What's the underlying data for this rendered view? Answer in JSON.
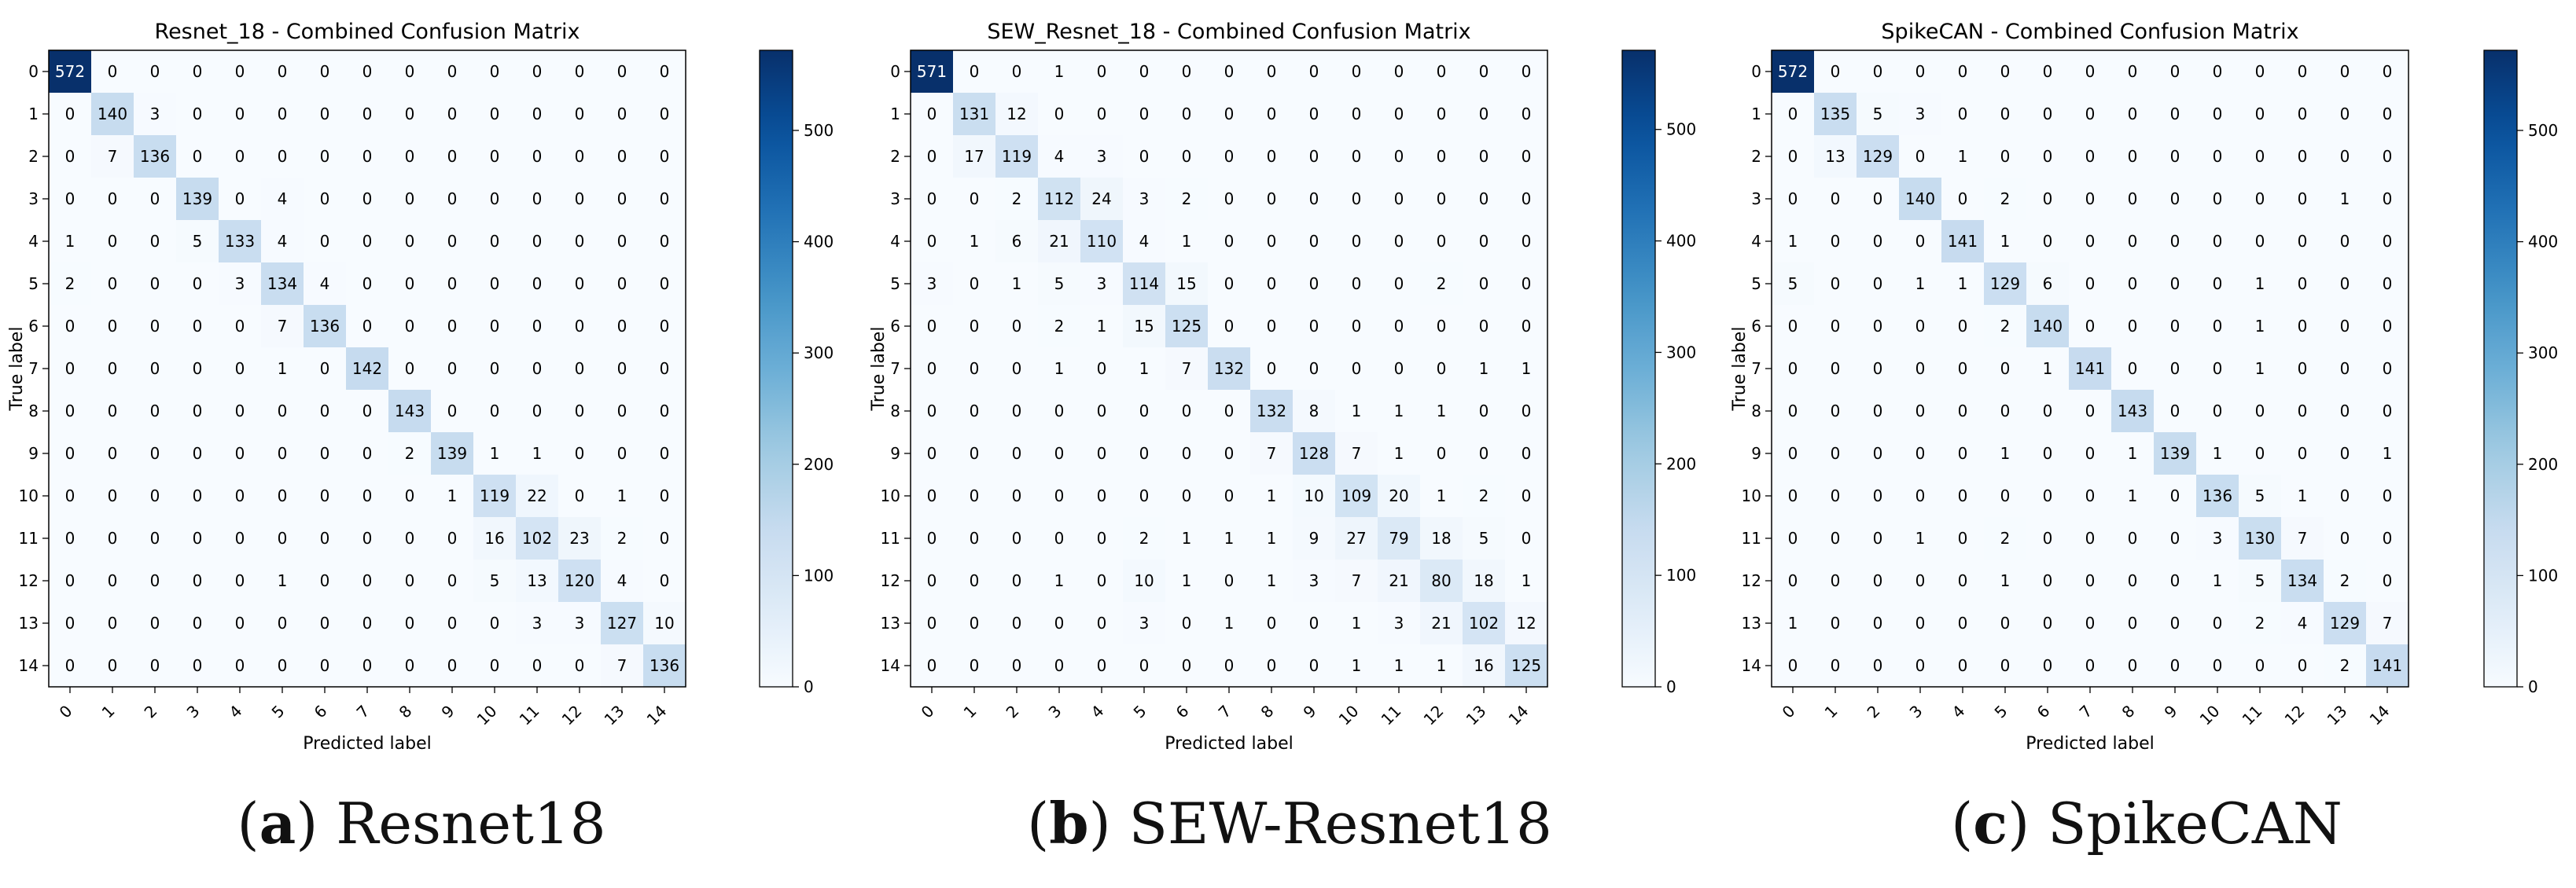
{
  "colors": {
    "low": "#f7fbff",
    "high": "#08306b",
    "light_text": "#ffffff",
    "dark_text": "#000000"
  },
  "chart_data": [
    {
      "type": "heatmap",
      "title": "Resnet_18 - Combined Confusion Matrix",
      "xlabel": "Predicted label",
      "ylabel": "True label",
      "labels": [
        "0",
        "1",
        "2",
        "3",
        "4",
        "5",
        "6",
        "7",
        "8",
        "9",
        "10",
        "11",
        "12",
        "13",
        "14"
      ],
      "colorbar": {
        "range": [
          0,
          572
        ],
        "ticks": [
          0,
          100,
          200,
          300,
          400,
          500
        ]
      },
      "matrix": [
        [
          572,
          0,
          0,
          0,
          0,
          0,
          0,
          0,
          0,
          0,
          0,
          0,
          0,
          0,
          0
        ],
        [
          0,
          140,
          3,
          0,
          0,
          0,
          0,
          0,
          0,
          0,
          0,
          0,
          0,
          0,
          0
        ],
        [
          0,
          7,
          136,
          0,
          0,
          0,
          0,
          0,
          0,
          0,
          0,
          0,
          0,
          0,
          0
        ],
        [
          0,
          0,
          0,
          139,
          0,
          4,
          0,
          0,
          0,
          0,
          0,
          0,
          0,
          0,
          0
        ],
        [
          1,
          0,
          0,
          5,
          133,
          4,
          0,
          0,
          0,
          0,
          0,
          0,
          0,
          0,
          0
        ],
        [
          2,
          0,
          0,
          0,
          3,
          134,
          4,
          0,
          0,
          0,
          0,
          0,
          0,
          0,
          0
        ],
        [
          0,
          0,
          0,
          0,
          0,
          7,
          136,
          0,
          0,
          0,
          0,
          0,
          0,
          0,
          0
        ],
        [
          0,
          0,
          0,
          0,
          0,
          1,
          0,
          142,
          0,
          0,
          0,
          0,
          0,
          0,
          0
        ],
        [
          0,
          0,
          0,
          0,
          0,
          0,
          0,
          0,
          143,
          0,
          0,
          0,
          0,
          0,
          0
        ],
        [
          0,
          0,
          0,
          0,
          0,
          0,
          0,
          0,
          2,
          139,
          1,
          1,
          0,
          0,
          0
        ],
        [
          0,
          0,
          0,
          0,
          0,
          0,
          0,
          0,
          0,
          1,
          119,
          22,
          0,
          1,
          0
        ],
        [
          0,
          0,
          0,
          0,
          0,
          0,
          0,
          0,
          0,
          0,
          16,
          102,
          23,
          2,
          0
        ],
        [
          0,
          0,
          0,
          0,
          0,
          1,
          0,
          0,
          0,
          0,
          5,
          13,
          120,
          4,
          0
        ],
        [
          0,
          0,
          0,
          0,
          0,
          0,
          0,
          0,
          0,
          0,
          0,
          3,
          3,
          127,
          10
        ],
        [
          0,
          0,
          0,
          0,
          0,
          0,
          0,
          0,
          0,
          0,
          0,
          0,
          0,
          7,
          136
        ]
      ],
      "caption_letter": "a",
      "caption_text": "Resnet18"
    },
    {
      "type": "heatmap",
      "title": "SEW_Resnet_18 - Combined Confusion Matrix",
      "xlabel": "Predicted label",
      "ylabel": "True label",
      "labels": [
        "0",
        "1",
        "2",
        "3",
        "4",
        "5",
        "6",
        "7",
        "8",
        "9",
        "10",
        "11",
        "12",
        "13",
        "14"
      ],
      "colorbar": {
        "range": [
          0,
          571
        ],
        "ticks": [
          0,
          100,
          200,
          300,
          400,
          500
        ]
      },
      "matrix": [
        [
          571,
          0,
          0,
          1,
          0,
          0,
          0,
          0,
          0,
          0,
          0,
          0,
          0,
          0,
          0
        ],
        [
          0,
          131,
          12,
          0,
          0,
          0,
          0,
          0,
          0,
          0,
          0,
          0,
          0,
          0,
          0
        ],
        [
          0,
          17,
          119,
          4,
          3,
          0,
          0,
          0,
          0,
          0,
          0,
          0,
          0,
          0,
          0
        ],
        [
          0,
          0,
          2,
          112,
          24,
          3,
          2,
          0,
          0,
          0,
          0,
          0,
          0,
          0,
          0
        ],
        [
          0,
          1,
          6,
          21,
          110,
          4,
          1,
          0,
          0,
          0,
          0,
          0,
          0,
          0,
          0
        ],
        [
          3,
          0,
          1,
          5,
          3,
          114,
          15,
          0,
          0,
          0,
          0,
          0,
          2,
          0,
          0
        ],
        [
          0,
          0,
          0,
          2,
          1,
          15,
          125,
          0,
          0,
          0,
          0,
          0,
          0,
          0,
          0
        ],
        [
          0,
          0,
          0,
          1,
          0,
          1,
          7,
          132,
          0,
          0,
          0,
          0,
          0,
          1,
          1
        ],
        [
          0,
          0,
          0,
          0,
          0,
          0,
          0,
          0,
          132,
          8,
          1,
          1,
          1,
          0,
          0
        ],
        [
          0,
          0,
          0,
          0,
          0,
          0,
          0,
          0,
          7,
          128,
          7,
          1,
          0,
          0,
          0
        ],
        [
          0,
          0,
          0,
          0,
          0,
          0,
          0,
          0,
          1,
          10,
          109,
          20,
          1,
          2,
          0
        ],
        [
          0,
          0,
          0,
          0,
          0,
          2,
          1,
          1,
          1,
          9,
          27,
          79,
          18,
          5,
          0
        ],
        [
          0,
          0,
          0,
          1,
          0,
          10,
          1,
          0,
          1,
          3,
          7,
          21,
          80,
          18,
          1
        ],
        [
          0,
          0,
          0,
          0,
          0,
          3,
          0,
          1,
          0,
          0,
          1,
          3,
          21,
          102,
          12
        ],
        [
          0,
          0,
          0,
          0,
          0,
          0,
          0,
          0,
          0,
          0,
          1,
          1,
          1,
          16,
          125
        ]
      ],
      "caption_letter": "b",
      "caption_text": "SEW-Resnet18"
    },
    {
      "type": "heatmap",
      "title": "SpikeCAN - Combined Confusion Matrix",
      "xlabel": "Predicted label",
      "ylabel": "True label",
      "labels": [
        "0",
        "1",
        "2",
        "3",
        "4",
        "5",
        "6",
        "7",
        "8",
        "9",
        "10",
        "11",
        "12",
        "13",
        "14"
      ],
      "colorbar": {
        "range": [
          0,
          572
        ],
        "ticks": [
          0,
          100,
          200,
          300,
          400,
          500
        ]
      },
      "matrix": [
        [
          572,
          0,
          0,
          0,
          0,
          0,
          0,
          0,
          0,
          0,
          0,
          0,
          0,
          0,
          0
        ],
        [
          0,
          135,
          5,
          3,
          0,
          0,
          0,
          0,
          0,
          0,
          0,
          0,
          0,
          0,
          0
        ],
        [
          0,
          13,
          129,
          0,
          1,
          0,
          0,
          0,
          0,
          0,
          0,
          0,
          0,
          0,
          0
        ],
        [
          0,
          0,
          0,
          140,
          0,
          2,
          0,
          0,
          0,
          0,
          0,
          0,
          0,
          1,
          0
        ],
        [
          1,
          0,
          0,
          0,
          141,
          1,
          0,
          0,
          0,
          0,
          0,
          0,
          0,
          0,
          0
        ],
        [
          5,
          0,
          0,
          1,
          1,
          129,
          6,
          0,
          0,
          0,
          0,
          1,
          0,
          0,
          0
        ],
        [
          0,
          0,
          0,
          0,
          0,
          2,
          140,
          0,
          0,
          0,
          0,
          1,
          0,
          0,
          0
        ],
        [
          0,
          0,
          0,
          0,
          0,
          0,
          1,
          141,
          0,
          0,
          0,
          1,
          0,
          0,
          0
        ],
        [
          0,
          0,
          0,
          0,
          0,
          0,
          0,
          0,
          143,
          0,
          0,
          0,
          0,
          0,
          0
        ],
        [
          0,
          0,
          0,
          0,
          0,
          1,
          0,
          0,
          1,
          139,
          1,
          0,
          0,
          0,
          1
        ],
        [
          0,
          0,
          0,
          0,
          0,
          0,
          0,
          0,
          1,
          0,
          136,
          5,
          1,
          0,
          0
        ],
        [
          0,
          0,
          0,
          1,
          0,
          2,
          0,
          0,
          0,
          0,
          3,
          130,
          7,
          0,
          0
        ],
        [
          0,
          0,
          0,
          0,
          0,
          1,
          0,
          0,
          0,
          0,
          1,
          5,
          134,
          2,
          0
        ],
        [
          1,
          0,
          0,
          0,
          0,
          0,
          0,
          0,
          0,
          0,
          0,
          2,
          4,
          129,
          7
        ],
        [
          0,
          0,
          0,
          0,
          0,
          0,
          0,
          0,
          0,
          0,
          0,
          0,
          0,
          2,
          141
        ]
      ],
      "caption_letter": "c",
      "caption_text": "SpikeCAN"
    }
  ]
}
